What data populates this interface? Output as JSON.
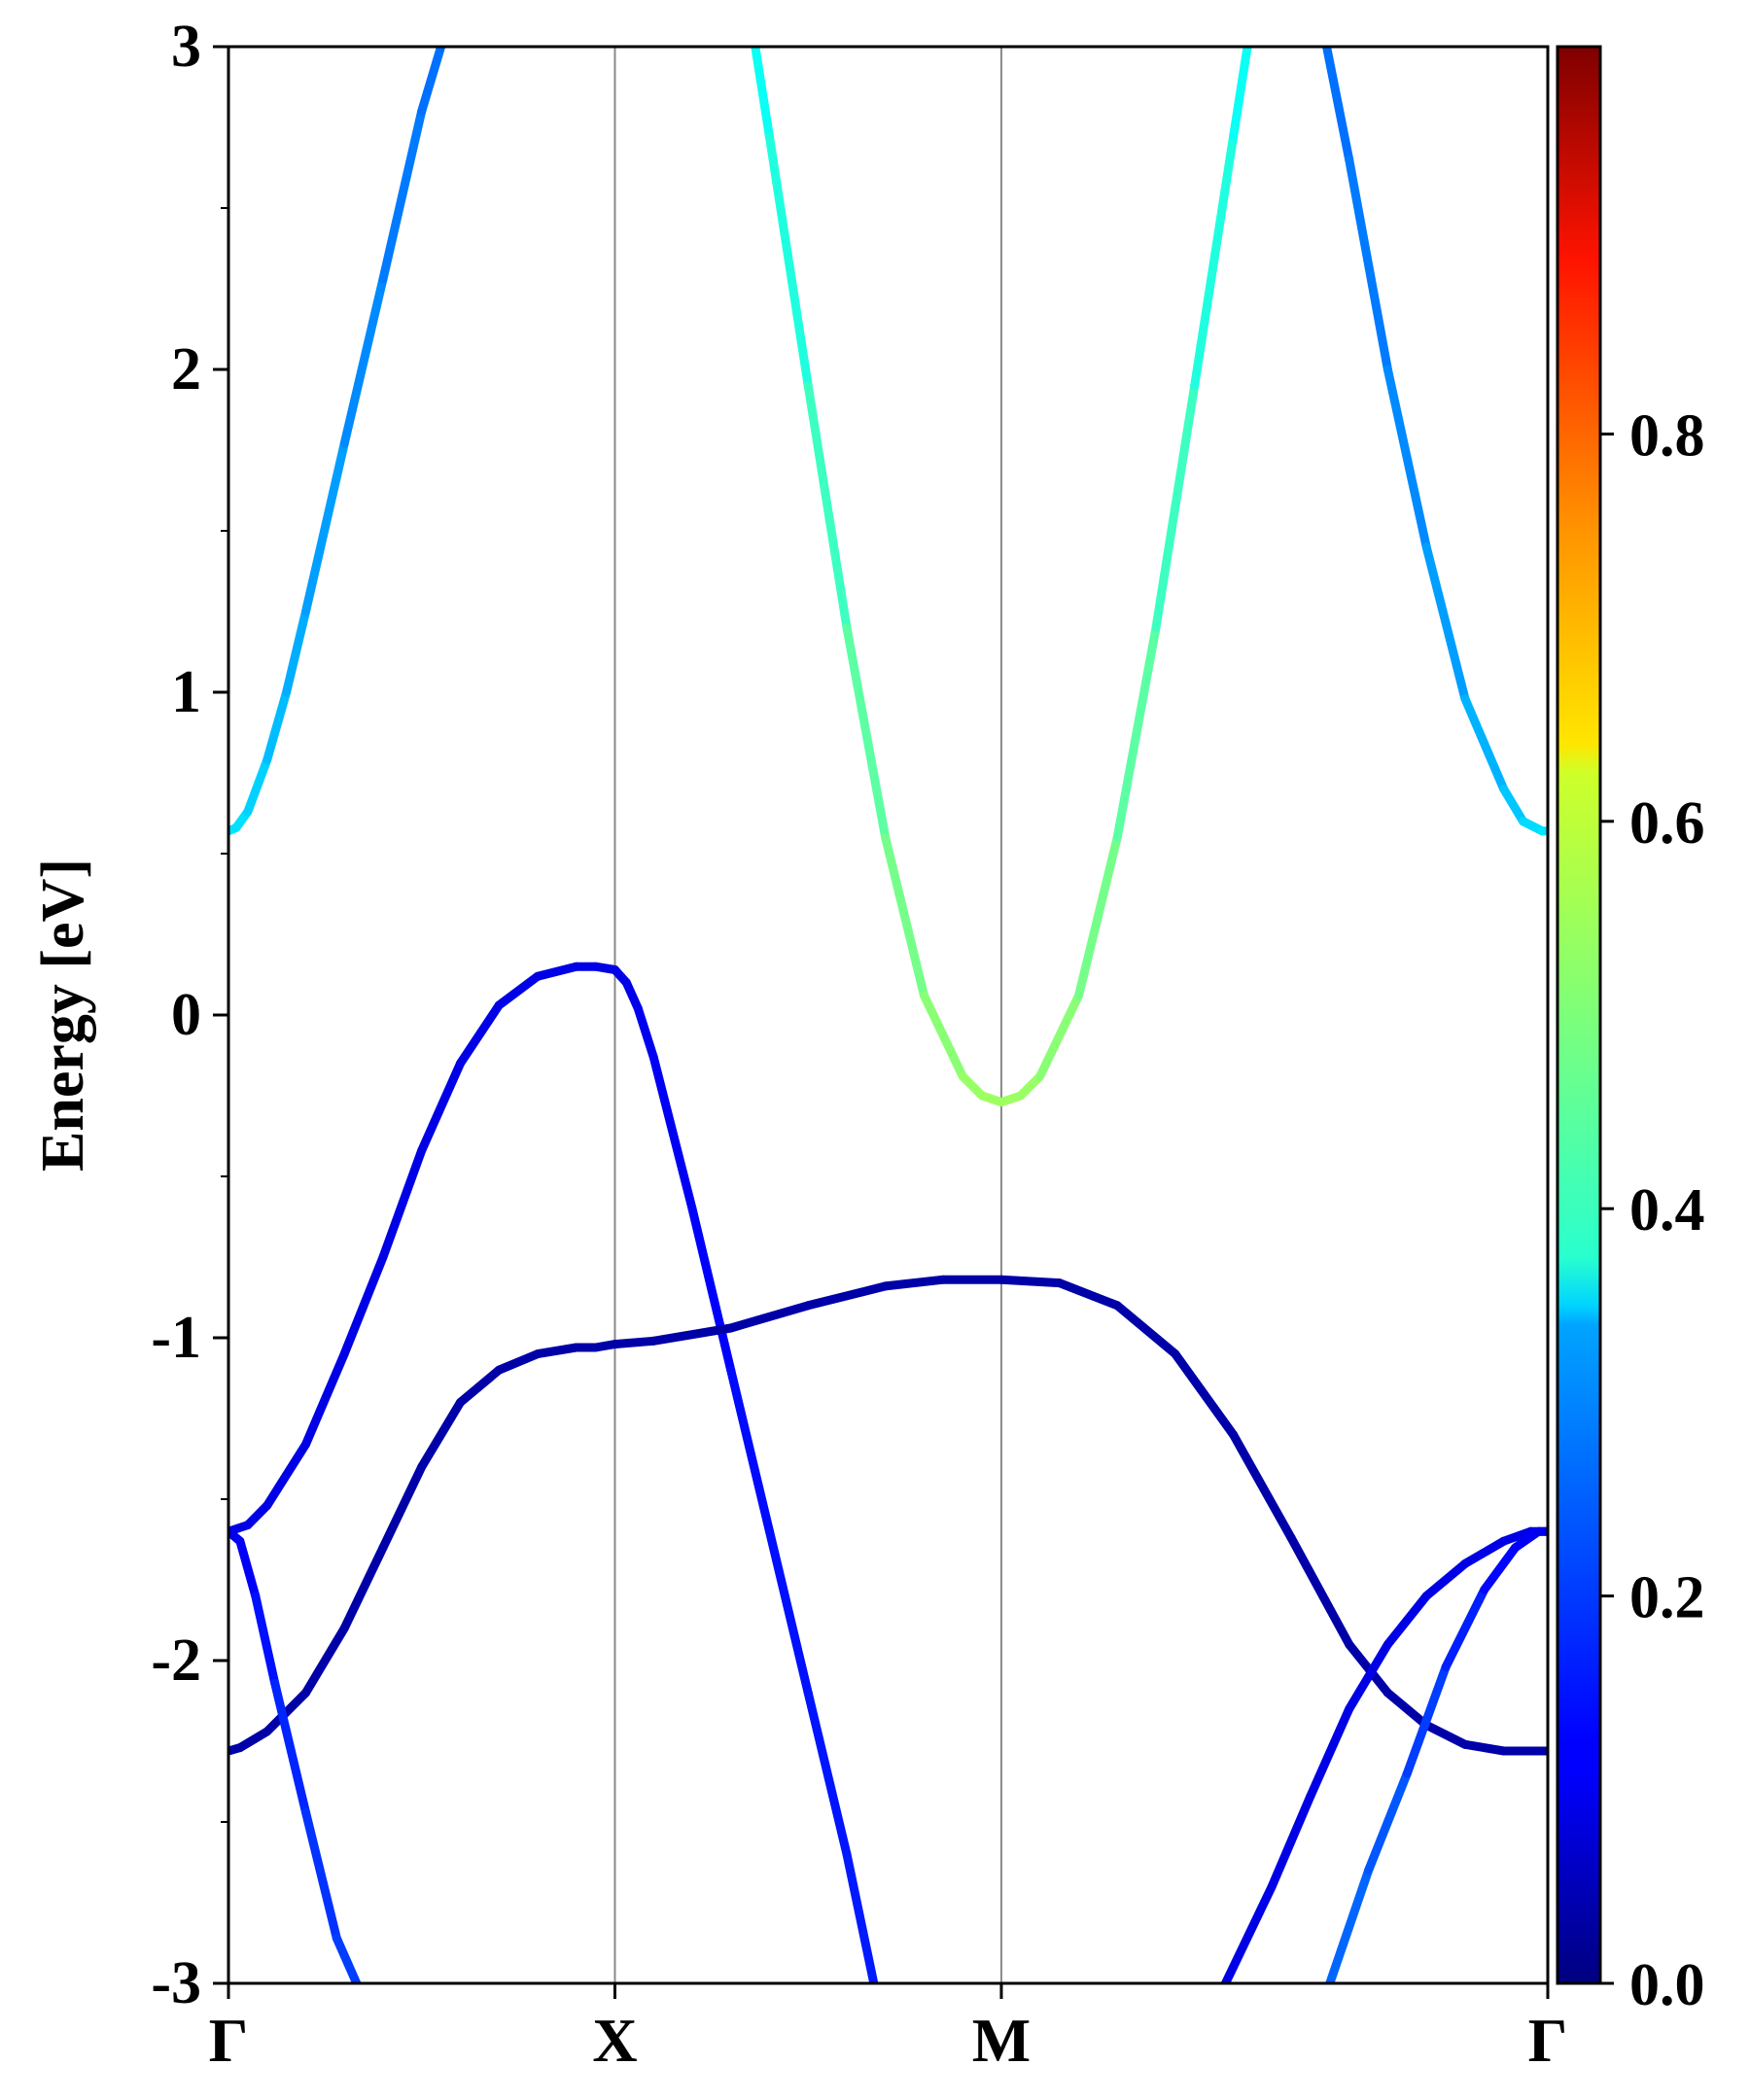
{
  "chart_data": {
    "type": "line",
    "title": "",
    "xlabel": "",
    "ylabel": "Energy [eV]",
    "ylim": [
      -3,
      3
    ],
    "yticks": [
      -3,
      -2,
      -1,
      0,
      1,
      2,
      3
    ],
    "y_tick_labels": [
      "-3",
      "-2",
      "-1",
      "0",
      "1",
      "2",
      "3"
    ],
    "y_minor_step": 0.5,
    "k_points": [
      0,
      1,
      2,
      3.414
    ],
    "k_labels": [
      "Γ",
      "X",
      "M",
      "Γ"
    ],
    "vertical_lines_at": [
      1,
      2
    ],
    "grid": false,
    "colorbar": {
      "colormap": "jet",
      "range": [
        0,
        1
      ],
      "ticks": [
        0.0,
        0.2,
        0.4,
        0.6,
        0.8
      ],
      "tick_labels": [
        "0.0",
        "0.2",
        "0.4",
        "0.6",
        "0.8"
      ]
    },
    "series": [
      {
        "k": [
          0,
          0.02,
          0.05,
          0.1,
          0.15,
          0.2,
          0.3,
          0.4,
          0.5,
          0.55,
          0.568
        ],
        "y": [
          0.57,
          0.58,
          0.63,
          0.79,
          1.0,
          1.25,
          1.77,
          2.28,
          2.8,
          3.0,
          3.07
        ],
        "weight": [
          0.35,
          0.35,
          0.34,
          0.32,
          0.3,
          0.29,
          0.27,
          0.25,
          0.24,
          0.23,
          0.23
        ]
      },
      {
        "k": [
          1.35,
          1.4,
          1.5,
          1.6,
          1.7,
          1.8,
          1.9,
          1.95,
          2.0,
          2.05,
          2.1,
          2.2,
          2.3,
          2.4,
          2.5,
          2.6,
          2.65
        ],
        "y": [
          3.1,
          2.72,
          1.95,
          1.2,
          0.55,
          0.06,
          -0.19,
          -0.25,
          -0.27,
          -0.25,
          -0.19,
          0.06,
          0.55,
          1.2,
          1.95,
          2.72,
          3.1
        ],
        "weight": [
          0.38,
          0.39,
          0.42,
          0.45,
          0.48,
          0.5,
          0.52,
          0.53,
          0.53,
          0.53,
          0.52,
          0.5,
          0.48,
          0.45,
          0.42,
          0.39,
          0.38
        ]
      },
      {
        "k": [
          2.83,
          2.9,
          3.0,
          3.1,
          3.2,
          3.3,
          3.35,
          3.4,
          3.414
        ],
        "y": [
          3.07,
          2.65,
          2.0,
          1.45,
          0.98,
          0.7,
          0.6,
          0.57,
          0.57
        ],
        "weight": [
          0.23,
          0.24,
          0.25,
          0.27,
          0.29,
          0.31,
          0.33,
          0.35,
          0.35
        ]
      },
      {
        "k": [
          0,
          0.05,
          0.1,
          0.2,
          0.3,
          0.4,
          0.5,
          0.6,
          0.7,
          0.8,
          0.9,
          0.95,
          1.0,
          1.03,
          1.06,
          1.1,
          1.2,
          1.3,
          1.4,
          1.5,
          1.6,
          1.67
        ],
        "y": [
          -1.6,
          -1.58,
          -1.52,
          -1.33,
          -1.05,
          -0.75,
          -0.42,
          -0.15,
          0.03,
          0.12,
          0.15,
          0.15,
          0.14,
          0.1,
          0.02,
          -0.13,
          -0.6,
          -1.1,
          -1.6,
          -2.1,
          -2.6,
          -3.0
        ],
        "weight": [
          0.1,
          0.1,
          0.1,
          0.1,
          0.1,
          0.1,
          0.1,
          0.1,
          0.1,
          0.1,
          0.1,
          0.1,
          0.1,
          0.1,
          0.11,
          0.11,
          0.12,
          0.13,
          0.14,
          0.14,
          0.15,
          0.15
        ]
      },
      {
        "k": [
          0,
          0.03,
          0.1,
          0.2,
          0.3,
          0.4,
          0.5,
          0.6,
          0.7,
          0.8,
          0.9,
          0.95,
          1.0,
          1.1,
          1.3,
          1.5,
          1.7,
          1.85,
          2.0,
          2.15,
          2.3,
          2.45,
          2.6,
          2.75,
          2.9,
          3.0,
          3.1,
          3.2,
          3.3,
          3.414
        ],
        "y": [
          -2.28,
          -2.27,
          -2.22,
          -2.1,
          -1.9,
          -1.65,
          -1.4,
          -1.2,
          -1.1,
          -1.05,
          -1.03,
          -1.03,
          -1.02,
          -1.01,
          -0.97,
          -0.9,
          -0.84,
          -0.82,
          -0.82,
          -0.83,
          -0.9,
          -1.05,
          -1.3,
          -1.62,
          -1.95,
          -2.1,
          -2.2,
          -2.26,
          -2.28,
          -2.28
        ],
        "weight": [
          0.04,
          0.04,
          0.04,
          0.04,
          0.04,
          0.04,
          0.04,
          0.04,
          0.04,
          0.04,
          0.04,
          0.04,
          0.04,
          0.04,
          0.04,
          0.04,
          0.04,
          0.04,
          0.04,
          0.04,
          0.04,
          0.04,
          0.04,
          0.04,
          0.04,
          0.04,
          0.04,
          0.04,
          0.04,
          0.04
        ]
      },
      {
        "k": [
          0,
          0.03,
          0.07,
          0.12,
          0.2,
          0.28,
          0.35
        ],
        "y": [
          -1.6,
          -1.63,
          -1.8,
          -2.07,
          -2.47,
          -2.86,
          -3.05
        ],
        "weight": [
          0.1,
          0.11,
          0.13,
          0.15,
          0.17,
          0.18,
          0.19
        ]
      },
      {
        "k": [
          2.58,
          2.7,
          2.8,
          2.9,
          3.0,
          3.1,
          3.2,
          3.3,
          3.37,
          3.414
        ],
        "y": [
          -3.0,
          -2.7,
          -2.42,
          -2.15,
          -1.95,
          -1.8,
          -1.7,
          -1.63,
          -1.6,
          -1.6
        ],
        "weight": [
          0.1,
          0.1,
          0.1,
          0.1,
          0.1,
          0.1,
          0.1,
          0.1,
          0.1,
          0.1
        ]
      },
      {
        "k": [
          2.85,
          2.95,
          3.05,
          3.15,
          3.25,
          3.33,
          3.39,
          3.414
        ],
        "y": [
          -3.0,
          -2.65,
          -2.35,
          -2.02,
          -1.78,
          -1.65,
          -1.6,
          -1.6
        ],
        "weight": [
          0.23,
          0.22,
          0.2,
          0.17,
          0.14,
          0.12,
          0.11,
          0.1
        ]
      }
    ]
  }
}
